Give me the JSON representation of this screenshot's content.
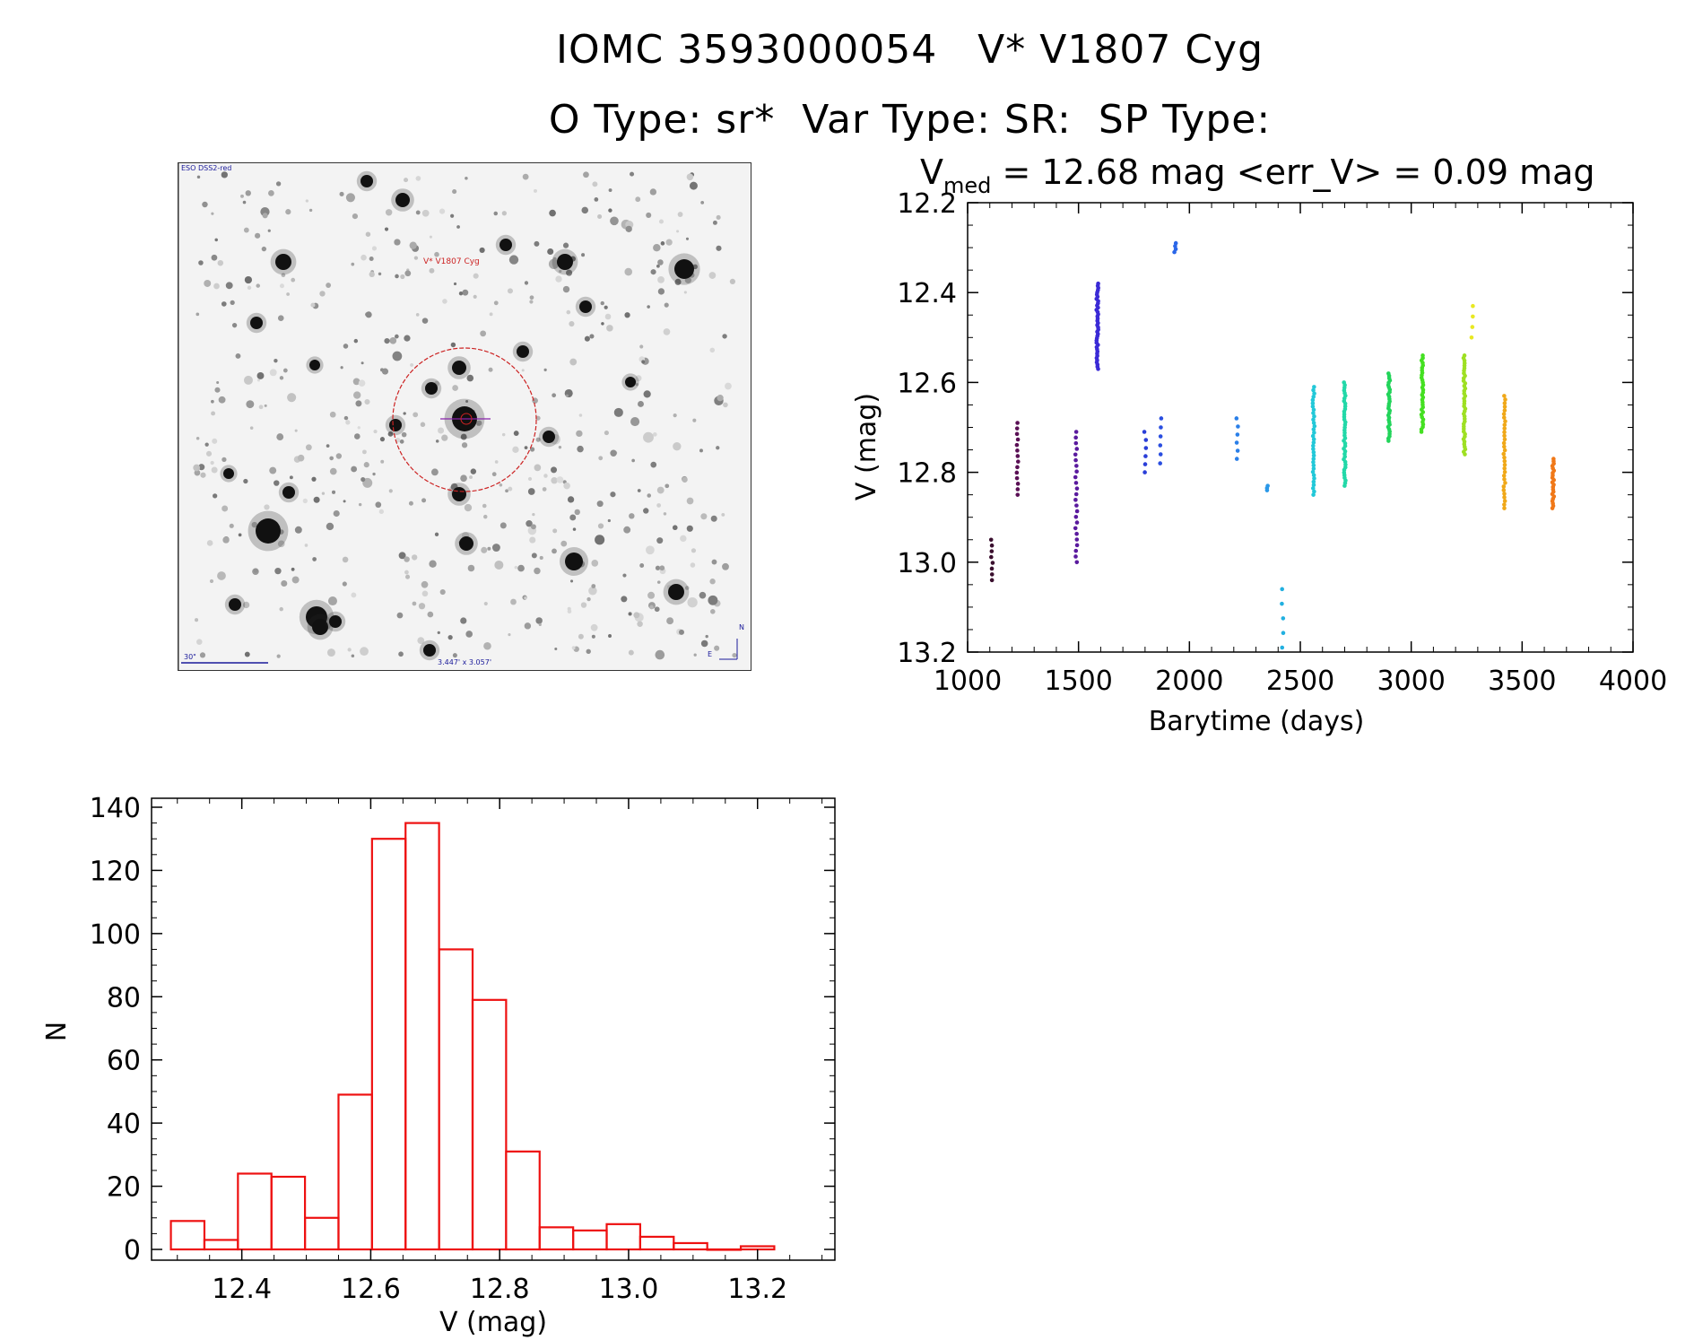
{
  "header": {
    "line1": "IOMC 3593000054   V* V1807 Cyg",
    "line2": "O Type: sr*  Var Type: SR:  SP Type:"
  },
  "finder_chart": {
    "survey_label": "ESO DSS2-red",
    "target_label": "V* V1807 Cyg",
    "scale_label": "30\"",
    "fov_label": "3.447' x 3.057'",
    "north_label": "N",
    "east_label": "E"
  },
  "colors": {
    "histogram": "#ee1111",
    "finder_mark": "#cc2222"
  },
  "chart_data": [
    {
      "type": "scatter",
      "title_prefix": "V",
      "title_subscript": "med",
      "title_rest": " = 12.68 mag <err_V> = 0.09 mag",
      "xlabel": "Barytime (days)",
      "ylabel": "V (mag)",
      "xlim": [
        1000,
        4000
      ],
      "ylim": [
        13.2,
        12.2
      ],
      "xticks": [
        "1000",
        "1500",
        "2000",
        "2500",
        "3000",
        "3500",
        "4000"
      ],
      "yticks": [
        "12.2",
        "12.4",
        "12.6",
        "12.8",
        "13.0",
        "13.2"
      ],
      "groups": [
        {
          "x": 1110,
          "ymin": 12.95,
          "ymax": 13.04,
          "n": 8,
          "color": "#3a0f2e"
        },
        {
          "x": 1225,
          "ymin": 12.69,
          "ymax": 12.85,
          "n": 14,
          "color": "#5a1055"
        },
        {
          "x": 1490,
          "ymin": 12.71,
          "ymax": 13.0,
          "n": 24,
          "color": "#5a1a9e"
        },
        {
          "x": 1585,
          "ymin": 12.38,
          "ymax": 12.57,
          "n": 40,
          "color": "#3a2ad6"
        },
        {
          "x": 1800,
          "ymin": 12.71,
          "ymax": 12.8,
          "n": 6,
          "color": "#2a3ed8"
        },
        {
          "x": 1870,
          "ymin": 12.68,
          "ymax": 12.78,
          "n": 6,
          "color": "#2a4ee0"
        },
        {
          "x": 1935,
          "ymin": 12.29,
          "ymax": 12.31,
          "n": 4,
          "color": "#2a66e8"
        },
        {
          "x": 2215,
          "ymin": 12.68,
          "ymax": 12.77,
          "n": 6,
          "color": "#2a7fe8"
        },
        {
          "x": 2350,
          "ymin": 12.83,
          "ymax": 12.84,
          "n": 3,
          "color": "#2a98e8"
        },
        {
          "x": 2420,
          "ymin": 13.06,
          "ymax": 13.19,
          "n": 5,
          "color": "#22b0e0"
        },
        {
          "x": 2560,
          "ymin": 12.61,
          "ymax": 12.85,
          "n": 34,
          "color": "#22c8d8"
        },
        {
          "x": 2700,
          "ymin": 12.6,
          "ymax": 12.83,
          "n": 40,
          "color": "#22d8a8"
        },
        {
          "x": 2900,
          "ymin": 12.58,
          "ymax": 12.73,
          "n": 30,
          "color": "#22d45a"
        },
        {
          "x": 3050,
          "ymin": 12.54,
          "ymax": 12.71,
          "n": 32,
          "color": "#44e022"
        },
        {
          "x": 3240,
          "ymin": 12.54,
          "ymax": 12.76,
          "n": 40,
          "color": "#9ee022"
        },
        {
          "x": 3275,
          "ymin": 12.43,
          "ymax": 12.5,
          "n": 4,
          "color": "#e8e822"
        },
        {
          "x": 3420,
          "ymin": 12.63,
          "ymax": 12.88,
          "n": 32,
          "color": "#f0a818"
        },
        {
          "x": 3640,
          "ymin": 12.77,
          "ymax": 12.88,
          "n": 22,
          "color": "#f07818"
        }
      ]
    },
    {
      "type": "bar",
      "subtype": "histogram",
      "xlabel": "V (mag)",
      "ylabel": "N",
      "xlim": [
        12.26,
        13.32
      ],
      "ylim": [
        0,
        140
      ],
      "xticks": [
        "12.4",
        "12.6",
        "12.8",
        "13.0",
        "13.2"
      ],
      "yticks": [
        "0",
        "20",
        "40",
        "60",
        "80",
        "100",
        "120",
        "140"
      ],
      "bin_edges": [
        12.29,
        12.342,
        12.394,
        12.446,
        12.498,
        12.55,
        12.602,
        12.654,
        12.706,
        12.758,
        12.81,
        12.862,
        12.914,
        12.966,
        13.018,
        13.07,
        13.122,
        13.174,
        13.226
      ],
      "counts": [
        9,
        3,
        24,
        23,
        10,
        49,
        130,
        135,
        95,
        79,
        31,
        7,
        6,
        8,
        4,
        2,
        0,
        1
      ]
    }
  ]
}
